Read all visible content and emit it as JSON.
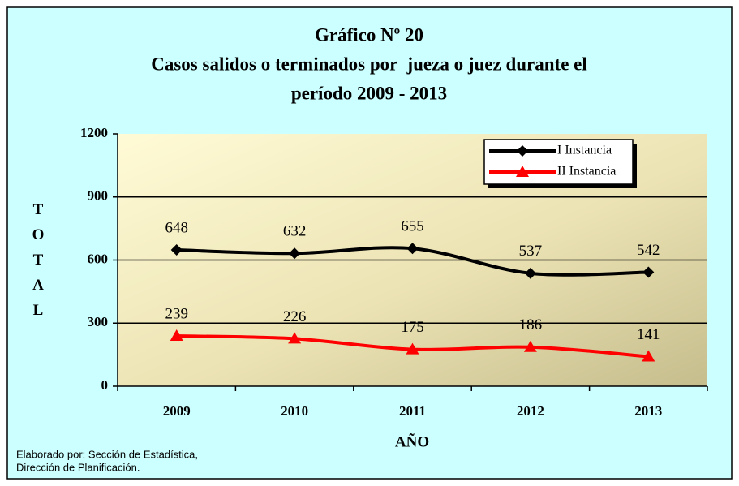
{
  "chart_data": {
    "type": "line",
    "title": [
      "Gráfico Nº 20",
      "Casos salidos o terminados por  jueza o juez durante el",
      "período 2009 - 2013"
    ],
    "xlabel": "AÑO",
    "ylabel": "TOTAL",
    "categories": [
      "2009",
      "2010",
      "2011",
      "2012",
      "2013"
    ],
    "series": [
      {
        "name": "I Instancia",
        "color": "#000000",
        "marker": "diamond",
        "values": [
          648,
          632,
          655,
          537,
          542
        ]
      },
      {
        "name": "II Instancia",
        "color": "#ff0000",
        "marker": "triangle",
        "values": [
          239,
          226,
          175,
          186,
          141
        ]
      }
    ],
    "ylim": [
      0,
      1200
    ],
    "yticks": [
      0,
      300,
      600,
      900,
      1200
    ],
    "grid": true,
    "legend": "upper right",
    "source": [
      "Elaborado por: Sección de Estadística,",
      "Dirección de Planificación."
    ]
  }
}
